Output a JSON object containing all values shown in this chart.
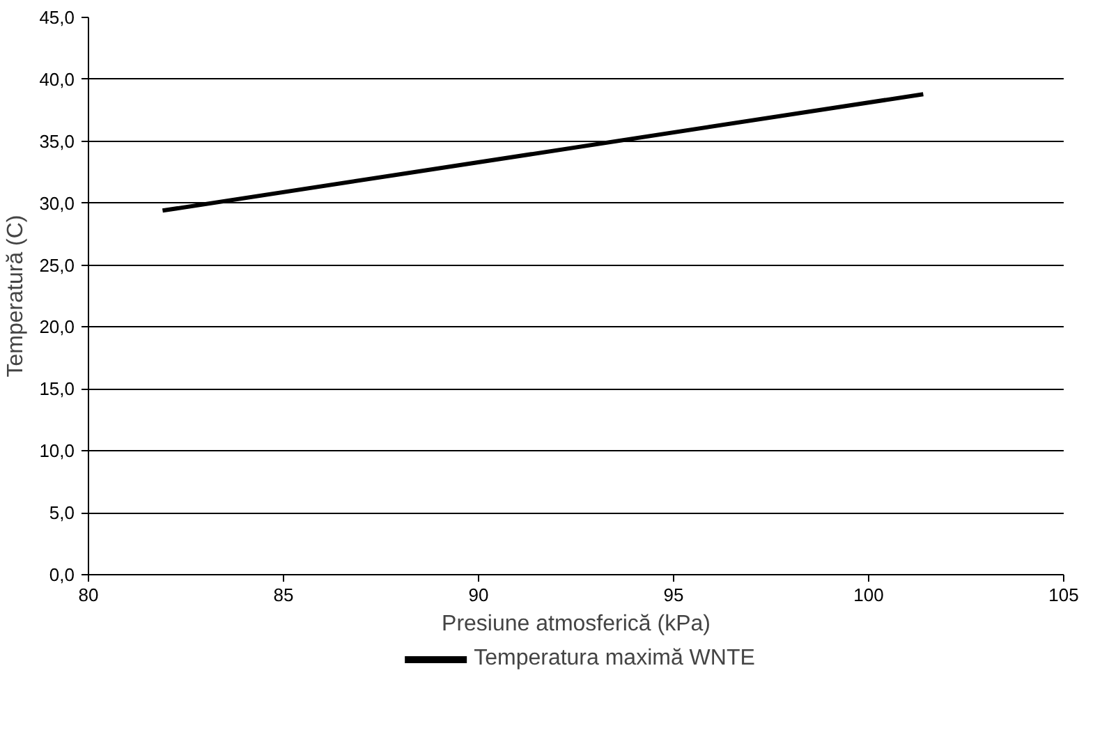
{
  "chart_data": {
    "type": "line",
    "xlabel": "Presiune atmosferică (kPa)",
    "ylabel": "Temperatură (C)",
    "x": [
      81.9,
      101.4
    ],
    "series": [
      {
        "name": "Temperatura maximă WNTE",
        "color": "#000000",
        "values": [
          29.4,
          38.8
        ]
      }
    ],
    "xlim": [
      80,
      105
    ],
    "xticks": [
      80,
      85,
      90,
      95,
      100,
      105
    ],
    "ylim": [
      0,
      45
    ],
    "yticks": [
      {
        "value": 0,
        "label": "0,0"
      },
      {
        "value": 5,
        "label": "5,0"
      },
      {
        "value": 10,
        "label": "10,0"
      },
      {
        "value": 15,
        "label": "15,0"
      },
      {
        "value": 20,
        "label": "20,0"
      },
      {
        "value": 25,
        "label": "25,0"
      },
      {
        "value": 30,
        "label": "30,0"
      },
      {
        "value": 35,
        "label": "35,0"
      },
      {
        "value": 40,
        "label": "40,0"
      },
      {
        "value": 45,
        "label": "45,0"
      }
    ],
    "grid": "y",
    "legend": "bottom",
    "marker": "none",
    "line_style": "solid"
  }
}
